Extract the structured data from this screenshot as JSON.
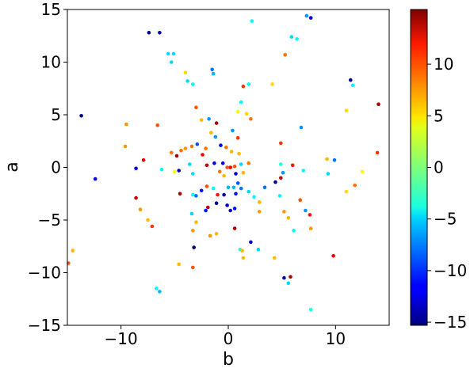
{
  "chart_data": {
    "type": "scatter",
    "title": "",
    "xlabel": "b",
    "ylabel": "a",
    "xlim": [
      -15,
      15
    ],
    "ylim": [
      -15,
      15
    ],
    "xticks": [
      -10,
      0,
      10
    ],
    "xtick_labels": [
      "−10",
      "0",
      "10"
    ],
    "yticks": [
      -15,
      -10,
      -5,
      0,
      5,
      10,
      15
    ],
    "ytick_labels": [
      "−15",
      "−10",
      "−5",
      "0",
      "5",
      "10",
      "15"
    ],
    "grid": false,
    "legend": "none",
    "colorbar": {
      "colormap": "jet",
      "range": [
        -15.3,
        15.3
      ],
      "ticks": [
        -15,
        -10,
        -5,
        0,
        5,
        10
      ],
      "tick_labels": [
        "−15",
        "−10",
        "−5",
        "0",
        "5",
        "10"
      ]
    },
    "points": [
      {
        "x": -7.4,
        "y": 12.8,
        "c": -15
      },
      {
        "x": -6.4,
        "y": 12.8,
        "c": -14
      },
      {
        "x": -5.6,
        "y": 10.8,
        "c": -5
      },
      {
        "x": -5.1,
        "y": 10.8,
        "c": -5
      },
      {
        "x": -5.3,
        "y": 10.0,
        "c": -5
      },
      {
        "x": -4.0,
        "y": 9.0,
        "c": 5
      },
      {
        "x": -1.4,
        "y": 8.9,
        "c": -6
      },
      {
        "x": -1.5,
        "y": 9.3,
        "c": -8
      },
      {
        "x": -3.8,
        "y": 8.2,
        "c": -5
      },
      {
        "x": -3.3,
        "y": 7.9,
        "c": -4
      },
      {
        "x": 2.2,
        "y": 13.9,
        "c": -4
      },
      {
        "x": 7.3,
        "y": 14.4,
        "c": -7
      },
      {
        "x": 7.7,
        "y": 14.2,
        "c": -13
      },
      {
        "x": 6.4,
        "y": 12.2,
        "c": -4
      },
      {
        "x": 5.9,
        "y": 12.4,
        "c": -5
      },
      {
        "x": 5.3,
        "y": 10.7,
        "c": 8
      },
      {
        "x": 4.1,
        "y": 7.9,
        "c": 5
      },
      {
        "x": 1.4,
        "y": 7.7,
        "c": 10
      },
      {
        "x": 1.9,
        "y": 7.9,
        "c": -4
      },
      {
        "x": 11.4,
        "y": 8.3,
        "c": -15
      },
      {
        "x": 11.6,
        "y": 7.8,
        "c": -4
      },
      {
        "x": 14.0,
        "y": 6.0,
        "c": 14
      },
      {
        "x": 11.0,
        "y": 5.4,
        "c": 5
      },
      {
        "x": -13.7,
        "y": 4.9,
        "c": -15
      },
      {
        "x": -9.5,
        "y": 4.1,
        "c": 7
      },
      {
        "x": -6.6,
        "y": 4.0,
        "c": 9
      },
      {
        "x": -3.0,
        "y": 5.7,
        "c": 9
      },
      {
        "x": -2.5,
        "y": 4.5,
        "c": 6
      },
      {
        "x": -1.8,
        "y": 4.6,
        "c": -7
      },
      {
        "x": 1.2,
        "y": 6.2,
        "c": -4
      },
      {
        "x": 1.7,
        "y": 5.1,
        "c": 5
      },
      {
        "x": 0.9,
        "y": 5.3,
        "c": 4
      },
      {
        "x": 2.1,
        "y": 4.6,
        "c": 8
      },
      {
        "x": 6.8,
        "y": 3.8,
        "c": -7
      },
      {
        "x": -9.6,
        "y": 2.0,
        "c": 7
      },
      {
        "x": -4.4,
        "y": 1.6,
        "c": 8
      },
      {
        "x": -4.0,
        "y": 1.8,
        "c": 7
      },
      {
        "x": -3.4,
        "y": 2.0,
        "c": 8
      },
      {
        "x": -2.9,
        "y": 2.2,
        "c": -9
      },
      {
        "x": -2.1,
        "y": 1.8,
        "c": 8
      },
      {
        "x": -1.2,
        "y": 2.9,
        "c": -7
      },
      {
        "x": -0.7,
        "y": 2.1,
        "c": -12
      },
      {
        "x": -0.2,
        "y": 1.9,
        "c": 8
      },
      {
        "x": 0.3,
        "y": 1.5,
        "c": 6
      },
      {
        "x": 0.9,
        "y": 2.8,
        "c": 10
      },
      {
        "x": 4.9,
        "y": 2.3,
        "c": 10
      },
      {
        "x": -1.1,
        "y": 4.2,
        "c": 14
      },
      {
        "x": 0.4,
        "y": 3.5,
        "c": -7
      },
      {
        "x": -1.6,
        "y": 3.3,
        "c": 6
      },
      {
        "x": 1.0,
        "y": 1.3,
        "c": 6
      },
      {
        "x": -7.9,
        "y": 0.7,
        "c": 12
      },
      {
        "x": -5.3,
        "y": 1.4,
        "c": 8
      },
      {
        "x": -5.0,
        "y": -0.4,
        "c": 4
      },
      {
        "x": -6.2,
        "y": -0.2,
        "c": -4
      },
      {
        "x": -8.6,
        "y": -0.1,
        "c": -12
      },
      {
        "x": -12.4,
        "y": -1.1,
        "c": -12
      },
      {
        "x": -4.8,
        "y": 1.1,
        "c": 14
      },
      {
        "x": -3.6,
        "y": 0.3,
        "c": -5
      },
      {
        "x": -2.4,
        "y": 1.2,
        "c": 12
      },
      {
        "x": -2.0,
        "y": 0.2,
        "c": 13
      },
      {
        "x": -4.6,
        "y": -0.3,
        "c": -14
      },
      {
        "x": -3.3,
        "y": -0.6,
        "c": -5
      },
      {
        "x": -1.3,
        "y": 0.4,
        "c": -12
      },
      {
        "x": -0.8,
        "y": -0.4,
        "c": 8
      },
      {
        "x": -0.5,
        "y": 0.4,
        "c": -12
      },
      {
        "x": -0.1,
        "y": 0.0,
        "c": 9
      },
      {
        "x": 0.2,
        "y": 0.0,
        "c": 12
      },
      {
        "x": 0.6,
        "y": 0.1,
        "c": 9
      },
      {
        "x": 1.2,
        "y": 0.3,
        "c": -5
      },
      {
        "x": 1.9,
        "y": 0.4,
        "c": 8
      },
      {
        "x": 0.7,
        "y": -0.6,
        "c": -13
      },
      {
        "x": 1.4,
        "y": -0.5,
        "c": 6
      },
      {
        "x": -0.4,
        "y": -0.8,
        "c": 6
      },
      {
        "x": 4.4,
        "y": -1.4,
        "c": -15
      },
      {
        "x": 4.9,
        "y": -1.0,
        "c": 13
      },
      {
        "x": 4.9,
        "y": 0.3,
        "c": -3
      },
      {
        "x": 5.1,
        "y": -0.5,
        "c": -7
      },
      {
        "x": 6.0,
        "y": 0.2,
        "c": 11
      },
      {
        "x": 7.0,
        "y": -0.3,
        "c": -4
      },
      {
        "x": 9.2,
        "y": 0.8,
        "c": 6
      },
      {
        "x": 9.9,
        "y": 0.7,
        "c": -8
      },
      {
        "x": 9.3,
        "y": -0.6,
        "c": -5
      },
      {
        "x": 12.5,
        "y": -0.4,
        "c": 4
      },
      {
        "x": 13.9,
        "y": 1.4,
        "c": 10
      },
      {
        "x": 11.0,
        "y": -2.3,
        "c": 5
      },
      {
        "x": 11.8,
        "y": -1.7,
        "c": 8
      },
      {
        "x": -8.6,
        "y": -2.9,
        "c": 13
      },
      {
        "x": -8.2,
        "y": -4.0,
        "c": 7
      },
      {
        "x": -7.5,
        "y": -5.0,
        "c": 6
      },
      {
        "x": -7.1,
        "y": -5.6,
        "c": 10
      },
      {
        "x": -14.9,
        "y": -9.1,
        "c": 9
      },
      {
        "x": -14.5,
        "y": -7.9,
        "c": 6
      },
      {
        "x": -4.5,
        "y": -2.5,
        "c": 14
      },
      {
        "x": -3.3,
        "y": -2.6,
        "c": -4
      },
      {
        "x": -3.0,
        "y": -2.7,
        "c": -8
      },
      {
        "x": -2.5,
        "y": -2.2,
        "c": -11
      },
      {
        "x": -2.0,
        "y": -1.8,
        "c": 9
      },
      {
        "x": -1.4,
        "y": -2.0,
        "c": -4
      },
      {
        "x": -1.0,
        "y": -2.6,
        "c": 11
      },
      {
        "x": 0.0,
        "y": -1.9,
        "c": -6
      },
      {
        "x": 0.5,
        "y": -1.9,
        "c": -6
      },
      {
        "x": 0.9,
        "y": -1.5,
        "c": -9
      },
      {
        "x": 1.2,
        "y": -2.0,
        "c": -8
      },
      {
        "x": 1.9,
        "y": -2.3,
        "c": -5
      },
      {
        "x": 0.7,
        "y": -2.5,
        "c": -11
      },
      {
        "x": -0.4,
        "y": -2.6,
        "c": -14
      },
      {
        "x": -1.9,
        "y": -3.8,
        "c": 13
      },
      {
        "x": -1.1,
        "y": -3.4,
        "c": -14
      },
      {
        "x": -0.1,
        "y": -3.6,
        "c": -13
      },
      {
        "x": 0.6,
        "y": -3.9,
        "c": -11
      },
      {
        "x": 0.2,
        "y": -4.1,
        "c": -13
      },
      {
        "x": -2.1,
        "y": -4.1,
        "c": -11
      },
      {
        "x": -3.4,
        "y": -4.4,
        "c": -5
      },
      {
        "x": -3.0,
        "y": -5.2,
        "c": 6
      },
      {
        "x": -3.3,
        "y": -6.0,
        "c": 7
      },
      {
        "x": -1.7,
        "y": -6.5,
        "c": 7
      },
      {
        "x": -1.1,
        "y": -6.3,
        "c": 6
      },
      {
        "x": 0.6,
        "y": -5.8,
        "c": 14
      },
      {
        "x": 2.4,
        "y": -2.8,
        "c": -4
      },
      {
        "x": 2.9,
        "y": -3.3,
        "c": 6
      },
      {
        "x": 2.9,
        "y": -4.2,
        "c": 7
      },
      {
        "x": 3.4,
        "y": -1.9,
        "c": -8
      },
      {
        "x": 4.8,
        "y": -2.7,
        "c": -4
      },
      {
        "x": 5.2,
        "y": -4.2,
        "c": 7
      },
      {
        "x": 5.6,
        "y": -4.8,
        "c": 6
      },
      {
        "x": 6.1,
        "y": -6.0,
        "c": -4
      },
      {
        "x": 6.7,
        "y": -3.1,
        "c": 9
      },
      {
        "x": 7.2,
        "y": -4.1,
        "c": -7
      },
      {
        "x": 7.6,
        "y": -4.5,
        "c": 11
      },
      {
        "x": 7.7,
        "y": -5.8,
        "c": 7
      },
      {
        "x": 1.1,
        "y": -7.8,
        "c": -3
      },
      {
        "x": 1.3,
        "y": -7.9,
        "c": 6
      },
      {
        "x": 1.4,
        "y": -8.6,
        "c": 6
      },
      {
        "x": 2.1,
        "y": -7.1,
        "c": -13
      },
      {
        "x": 2.8,
        "y": -7.8,
        "c": -5
      },
      {
        "x": 4.3,
        "y": -8.6,
        "c": 6
      },
      {
        "x": -3.2,
        "y": -7.6,
        "c": -15
      },
      {
        "x": -3.3,
        "y": -9.5,
        "c": 9
      },
      {
        "x": -4.6,
        "y": -9.2,
        "c": 6
      },
      {
        "x": 5.2,
        "y": -10.5,
        "c": -13
      },
      {
        "x": 5.6,
        "y": -11.0,
        "c": -5
      },
      {
        "x": 5.8,
        "y": -10.4,
        "c": 14
      },
      {
        "x": 9.8,
        "y": -8.4,
        "c": 12
      },
      {
        "x": -6.7,
        "y": -11.5,
        "c": -4
      },
      {
        "x": -6.4,
        "y": -11.8,
        "c": -6
      },
      {
        "x": 7.7,
        "y": -13.5,
        "c": -3
      }
    ]
  }
}
